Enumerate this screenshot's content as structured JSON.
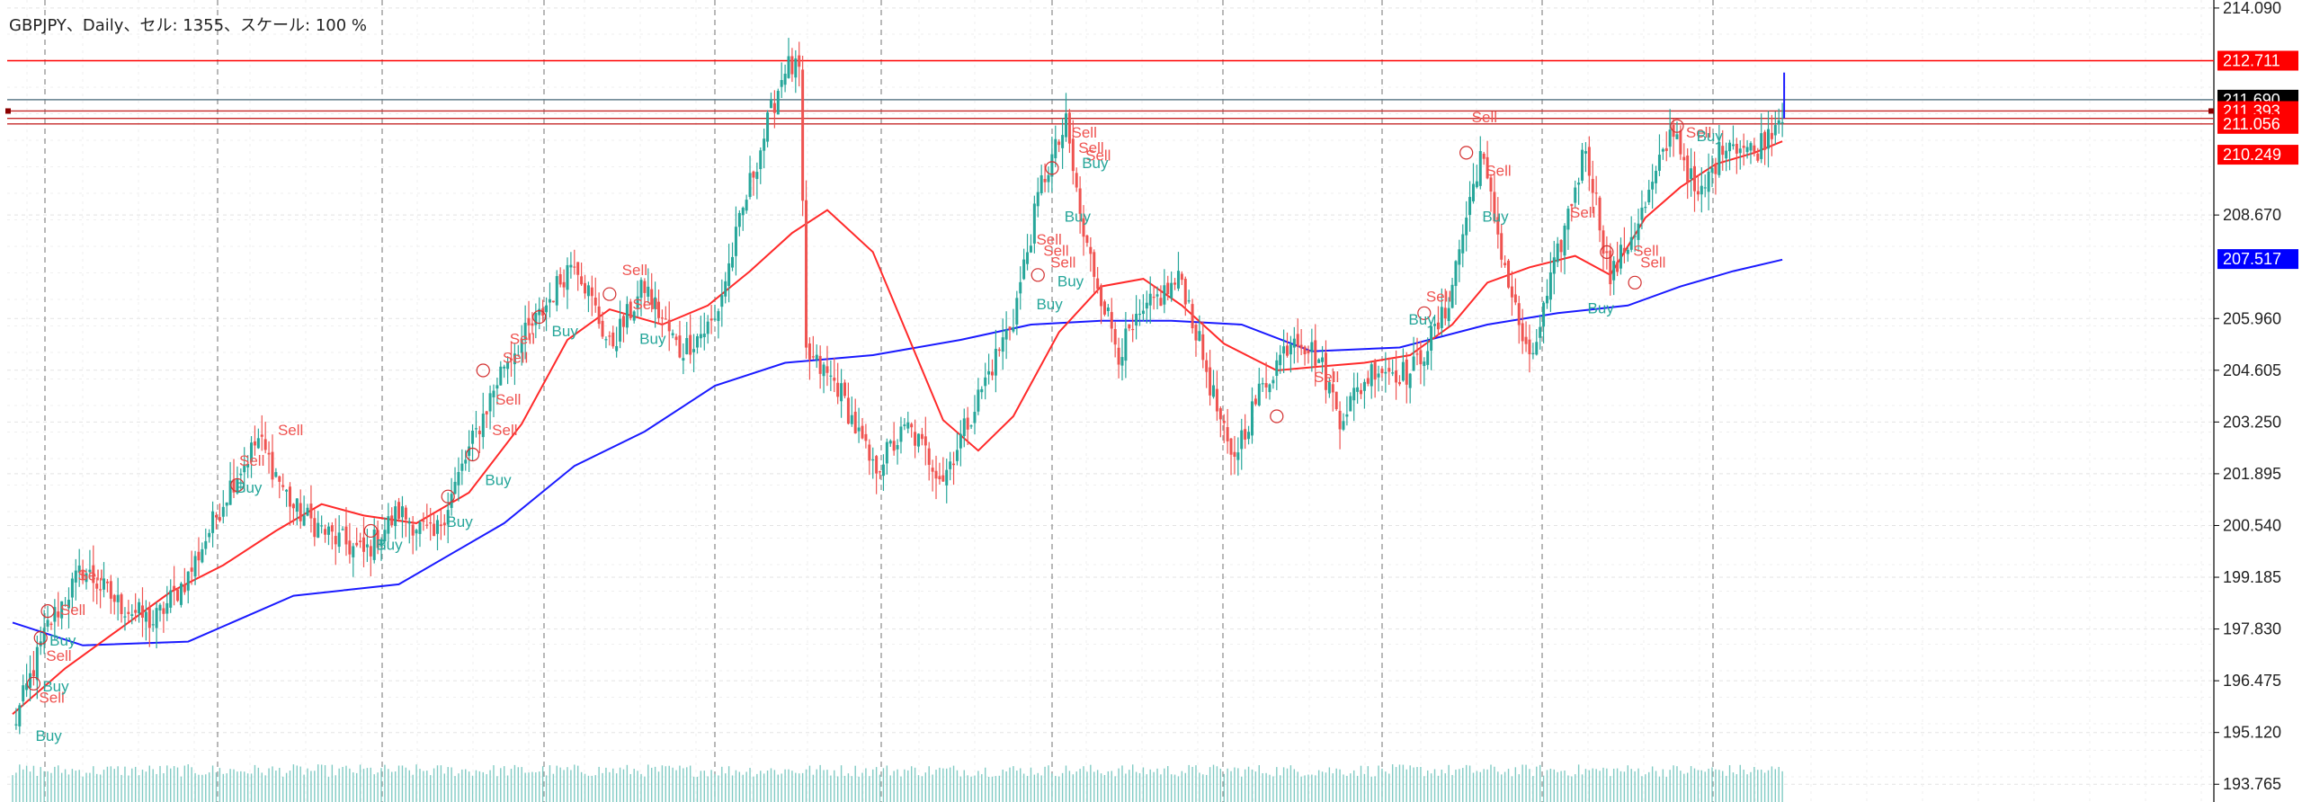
{
  "header": {
    "title": "GBPJPY、Daily、セル: 1355、スケール: 100 %"
  },
  "price_tags": [
    {
      "label": "212.711",
      "price": 212.711,
      "bg": "#ff0000"
    },
    {
      "label": "211.690",
      "price": 211.69,
      "bg": "#000000"
    },
    {
      "label": "211.393",
      "price": 211.393,
      "bg": "#ff0000"
    },
    {
      "label": "211.056",
      "price": 211.056,
      "bg": "#ff0000"
    },
    {
      "label": "210.249",
      "price": 210.249,
      "bg": "#ff0000"
    },
    {
      "label": "207.517",
      "price": 207.517,
      "bg": "#0000ff"
    }
  ],
  "chart_data": {
    "type": "candlestick",
    "symbol": "GBPJPY",
    "timeframe": "Daily",
    "ylim": [
      193.3,
      214.3
    ],
    "y_ticks": [
      "214.090",
      "208.670",
      "205.960",
      "204.605",
      "203.250",
      "201.895",
      "200.540",
      "199.185",
      "197.830",
      "196.475",
      "195.120",
      "193.765"
    ],
    "grid": true,
    "horizontal_lines": [
      {
        "price": 212.711,
        "color": "#ff0000"
      },
      {
        "price": 211.69,
        "color": "#607d8b"
      },
      {
        "price": 211.393,
        "color": "#c62828"
      },
      {
        "price": 211.2,
        "color": "#c62828"
      },
      {
        "price": 211.056,
        "color": "#c62828"
      }
    ],
    "anchors": [
      [
        0,
        195.2
      ],
      [
        10,
        197.9
      ],
      [
        20,
        199.4
      ],
      [
        30,
        198.5
      ],
      [
        40,
        198.0
      ],
      [
        50,
        199.2
      ],
      [
        62,
        201.6
      ],
      [
        70,
        202.8
      ],
      [
        80,
        201.0
      ],
      [
        90,
        200.3
      ],
      [
        100,
        199.8
      ],
      [
        110,
        200.9
      ],
      [
        120,
        200.2
      ],
      [
        130,
        202.5
      ],
      [
        140,
        204.8
      ],
      [
        150,
        206.0
      ],
      [
        160,
        207.6
      ],
      [
        170,
        205.2
      ],
      [
        180,
        206.8
      ],
      [
        190,
        205.1
      ],
      [
        200,
        205.9
      ],
      [
        210,
        209.5
      ],
      [
        220,
        212.6
      ],
      [
        224,
        212.4
      ],
      [
        226,
        205.0
      ],
      [
        235,
        204.2
      ],
      [
        245,
        202.0
      ],
      [
        255,
        203.1
      ],
      [
        265,
        201.8
      ],
      [
        275,
        203.9
      ],
      [
        285,
        206.0
      ],
      [
        293,
        209.5
      ],
      [
        300,
        211.0
      ],
      [
        305,
        208.1
      ],
      [
        315,
        205.1
      ],
      [
        325,
        206.4
      ],
      [
        333,
        207.0
      ],
      [
        340,
        204.6
      ],
      [
        347,
        202.2
      ],
      [
        355,
        204.0
      ],
      [
        365,
        205.6
      ],
      [
        372,
        204.9
      ],
      [
        378,
        203.4
      ],
      [
        388,
        204.7
      ],
      [
        398,
        204.5
      ],
      [
        408,
        206.1
      ],
      [
        418,
        210.3
      ],
      [
        426,
        206.9
      ],
      [
        432,
        204.7
      ],
      [
        440,
        207.6
      ],
      [
        448,
        210.5
      ],
      [
        455,
        207.0
      ],
      [
        465,
        208.9
      ],
      [
        473,
        211.0
      ],
      [
        480,
        209.0
      ],
      [
        488,
        210.7
      ],
      [
        496,
        210.3
      ],
      [
        504,
        211.4
      ]
    ],
    "ma_fast": [
      [
        0,
        195.6
      ],
      [
        15,
        196.8
      ],
      [
        30,
        197.8
      ],
      [
        45,
        198.8
      ],
      [
        60,
        199.5
      ],
      [
        75,
        200.4
      ],
      [
        88,
        201.1
      ],
      [
        100,
        200.8
      ],
      [
        115,
        200.6
      ],
      [
        130,
        201.4
      ],
      [
        145,
        203.2
      ],
      [
        158,
        205.4
      ],
      [
        170,
        206.2
      ],
      [
        185,
        205.8
      ],
      [
        198,
        206.3
      ],
      [
        210,
        207.2
      ],
      [
        222,
        208.2
      ],
      [
        232,
        208.8
      ],
      [
        245,
        207.7
      ],
      [
        255,
        205.5
      ],
      [
        265,
        203.3
      ],
      [
        275,
        202.5
      ],
      [
        285,
        203.4
      ],
      [
        298,
        205.6
      ],
      [
        310,
        206.8
      ],
      [
        322,
        207.0
      ],
      [
        333,
        206.3
      ],
      [
        345,
        205.3
      ],
      [
        360,
        204.6
      ],
      [
        372,
        204.7
      ],
      [
        385,
        204.8
      ],
      [
        398,
        205.0
      ],
      [
        410,
        205.8
      ],
      [
        420,
        206.9
      ],
      [
        432,
        207.3
      ],
      [
        445,
        207.6
      ],
      [
        455,
        207.1
      ],
      [
        465,
        208.6
      ],
      [
        475,
        209.4
      ],
      [
        485,
        210.0
      ],
      [
        496,
        210.3
      ],
      [
        504,
        210.6
      ]
    ],
    "ma_slow": [
      [
        0,
        198.0
      ],
      [
        20,
        197.4
      ],
      [
        50,
        197.5
      ],
      [
        80,
        198.7
      ],
      [
        110,
        199.0
      ],
      [
        140,
        200.6
      ],
      [
        160,
        202.1
      ],
      [
        180,
        203.0
      ],
      [
        200,
        204.2
      ],
      [
        220,
        204.8
      ],
      [
        245,
        205.0
      ],
      [
        270,
        205.4
      ],
      [
        290,
        205.8
      ],
      [
        310,
        205.9
      ],
      [
        330,
        205.9
      ],
      [
        350,
        205.8
      ],
      [
        370,
        205.1
      ],
      [
        395,
        205.2
      ],
      [
        420,
        205.8
      ],
      [
        440,
        206.1
      ],
      [
        460,
        206.3
      ],
      [
        475,
        206.8
      ],
      [
        490,
        207.2
      ],
      [
        504,
        207.5
      ]
    ],
    "signals": [
      {
        "i": 5,
        "text": "Buy",
        "price": 194.9
      },
      {
        "i": 6,
        "text": "Sell",
        "price": 195.9
      },
      {
        "i": 7,
        "text": "Buy",
        "price": 196.2
      },
      {
        "i": 8,
        "text": "Sell",
        "price": 197.0
      },
      {
        "i": 9,
        "text": "Buy",
        "price": 197.4
      },
      {
        "i": 12,
        "text": "Sell",
        "price": 198.2
      },
      {
        "i": 17,
        "text": "Sell",
        "price": 199.1
      },
      {
        "i": 62,
        "text": "Buy",
        "price": 201.4
      },
      {
        "i": 63,
        "text": "Sell",
        "price": 202.1
      },
      {
        "i": 74,
        "text": "Sell",
        "price": 202.9
      },
      {
        "i": 102,
        "text": "Buy",
        "price": 199.9
      },
      {
        "i": 122,
        "text": "Buy",
        "price": 200.5
      },
      {
        "i": 133,
        "text": "Buy",
        "price": 201.6
      },
      {
        "i": 135,
        "text": "Sell",
        "price": 202.9
      },
      {
        "i": 136,
        "text": "Sell",
        "price": 203.7
      },
      {
        "i": 138,
        "text": "Sell",
        "price": 204.8
      },
      {
        "i": 140,
        "text": "Sell",
        "price": 205.3
      },
      {
        "i": 152,
        "text": "Buy",
        "price": 205.5
      },
      {
        "i": 172,
        "text": "Sell",
        "price": 207.1
      },
      {
        "i": 175,
        "text": "Sell",
        "price": 206.2
      },
      {
        "i": 177,
        "text": "Buy",
        "price": 205.3
      },
      {
        "i": 290,
        "text": "Sell",
        "price": 207.9
      },
      {
        "i": 292,
        "text": "Sell",
        "price": 207.6
      },
      {
        "i": 294,
        "text": "Sell",
        "price": 207.3
      },
      {
        "i": 296,
        "text": "Buy",
        "price": 206.8
      },
      {
        "i": 290,
        "text": "Buy",
        "price": 206.2
      },
      {
        "i": 298,
        "text": "Buy",
        "price": 208.5
      },
      {
        "i": 300,
        "text": "Sell",
        "price": 210.7
      },
      {
        "i": 302,
        "text": "Sell",
        "price": 210.3
      },
      {
        "i": 304,
        "text": "Sell",
        "price": 210.1
      },
      {
        "i": 303,
        "text": "Buy",
        "price": 209.9
      },
      {
        "i": 369,
        "text": "Sell",
        "price": 204.3
      },
      {
        "i": 396,
        "text": "Buy",
        "price": 205.8
      },
      {
        "i": 401,
        "text": "Sell",
        "price": 206.4
      },
      {
        "i": 414,
        "text": "Sell",
        "price": 211.1
      },
      {
        "i": 418,
        "text": "Sell",
        "price": 209.7
      },
      {
        "i": 417,
        "text": "Buy",
        "price": 208.5
      },
      {
        "i": 442,
        "text": "Sell",
        "price": 208.6
      },
      {
        "i": 447,
        "text": "Buy",
        "price": 206.1
      },
      {
        "i": 460,
        "text": "Sell",
        "price": 207.6
      },
      {
        "i": 462,
        "text": "Sell",
        "price": 207.3
      },
      {
        "i": 475,
        "text": "Sell",
        "price": 210.7
      },
      {
        "i": 478,
        "text": "Buy",
        "price": 210.6
      }
    ],
    "markers": [
      {
        "i": 6,
        "price": 196.4
      },
      {
        "i": 8,
        "price": 197.6
      },
      {
        "i": 10,
        "price": 198.3
      },
      {
        "i": 64,
        "price": 201.6
      },
      {
        "i": 102,
        "price": 200.4
      },
      {
        "i": 124,
        "price": 201.3
      },
      {
        "i": 131,
        "price": 202.4
      },
      {
        "i": 134,
        "price": 204.6
      },
      {
        "i": 150,
        "price": 206.0
      },
      {
        "i": 170,
        "price": 206.6
      },
      {
        "i": 296,
        "price": 209.9
      },
      {
        "i": 292,
        "price": 207.1
      },
      {
        "i": 360,
        "price": 203.4
      },
      {
        "i": 402,
        "price": 206.1
      },
      {
        "i": 454,
        "price": 207.7
      },
      {
        "i": 462,
        "price": 206.9
      },
      {
        "i": 474,
        "price": 211.0
      },
      {
        "i": 414,
        "price": 210.3
      }
    ],
    "vertical_grid_every": 47
  }
}
